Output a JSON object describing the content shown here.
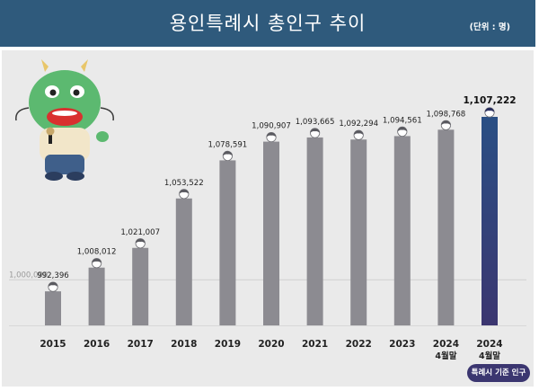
{
  "title": "용인특례시 총인구 추이",
  "unit": "(단위 : 명)",
  "badge": "특례시 기준 인구",
  "colors": {
    "header": "#2f5a7c",
    "bar": "#8c8b91",
    "bar_highlight": "#3b3670",
    "panel": "#eaeaea"
  },
  "chart_data": {
    "type": "bar",
    "categories": [
      "2015",
      "2016",
      "2017",
      "2018",
      "2019",
      "2020",
      "2021",
      "2022",
      "2023",
      "2024\n4월말",
      "2024\n4월말"
    ],
    "values": [
      992396,
      1008012,
      1021007,
      1053522,
      1078591,
      1090907,
      1093665,
      1092294,
      1094561,
      1098768,
      1107222
    ],
    "value_labels": [
      "992,396",
      "1,008,012",
      "1,021,007",
      "1,053,522",
      "1,078,591",
      "1,090,907",
      "1,093,665",
      "1,092,294",
      "1,094,561",
      "1,098,768",
      "1,107,222"
    ],
    "highlight_index": 10,
    "reference_line": {
      "value": 1000000,
      "label": "1,000,000"
    },
    "title": "용인특례시 총인구 추이",
    "xlabel": "",
    "ylabel": "",
    "grid": false
  }
}
